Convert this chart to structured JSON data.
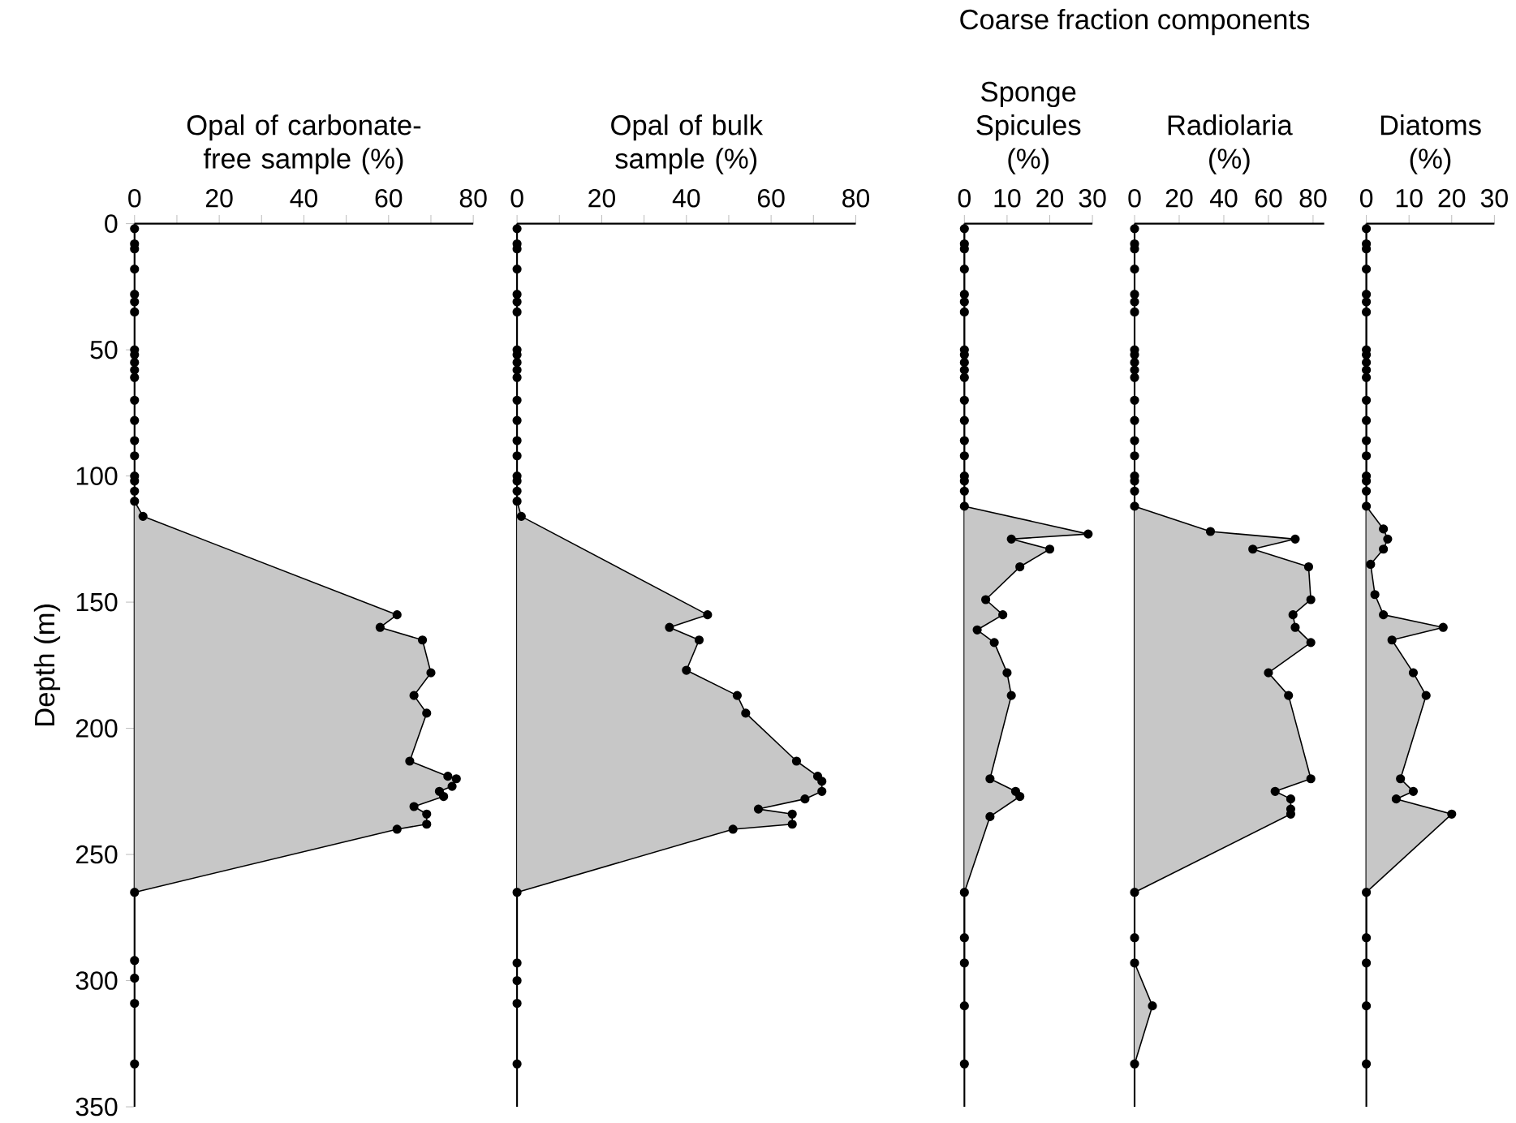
{
  "chart_data": [
    {
      "type": "area",
      "orientation": "horizontal",
      "xlabel": "Opal of carbonate-free sample (%)",
      "ylabel": "Depth (m)",
      "marker": "circle",
      "x": [
        2,
        8,
        10,
        18,
        28,
        31,
        35,
        50,
        52,
        55,
        58,
        61,
        70,
        78,
        86,
        92,
        100,
        102,
        106,
        110,
        116,
        155,
        160,
        165,
        178,
        187,
        194,
        213,
        219,
        220,
        223,
        225,
        227,
        231,
        234,
        238,
        240,
        265,
        292,
        299,
        309,
        333
      ],
      "series": [
        {
          "color": "#000000",
          "values": [
            0,
            0,
            0,
            0,
            0,
            0,
            0,
            0,
            0,
            0,
            0,
            0,
            0,
            0,
            0,
            0,
            0,
            0,
            0,
            0,
            2,
            62,
            58,
            68,
            70,
            66,
            69,
            65,
            74,
            76,
            75,
            72,
            73,
            66,
            69,
            69,
            62,
            0,
            0,
            0,
            0,
            0
          ]
        }
      ],
      "xlim": [
        0,
        80
      ],
      "xticks": [
        0,
        {
          "value": 10,
          "label": null
        },
        20,
        {
          "value": 30,
          "label": null
        },
        40,
        {
          "value": 50,
          "label": null
        },
        60,
        {
          "value": 70,
          "label": null
        },
        80
      ],
      "ylim": [
        350,
        0
      ],
      "yticks": [
        0,
        50,
        100,
        150,
        200,
        250,
        300,
        350
      ]
    },
    {
      "type": "area",
      "orientation": "horizontal",
      "xlabel": "Opal of bulk sample (%)",
      "marker": "circle",
      "tick_labels": "x",
      "x": [
        2,
        8,
        10,
        18,
        28,
        31,
        35,
        50,
        52,
        55,
        58,
        61,
        70,
        78,
        86,
        92,
        100,
        102,
        106,
        110,
        116,
        155,
        160,
        165,
        177,
        187,
        194,
        213,
        219,
        221,
        225,
        228,
        232,
        234,
        238,
        240,
        265,
        293,
        300,
        309,
        333
      ],
      "series": [
        {
          "color": "#000000",
          "values": [
            0,
            0,
            0,
            0,
            0,
            0,
            0,
            0,
            0,
            0,
            0,
            0,
            0,
            0,
            0,
            0,
            0,
            0,
            0,
            0,
            1,
            45,
            36,
            43,
            40,
            52,
            54,
            66,
            71,
            72,
            72,
            68,
            57,
            65,
            65,
            51,
            0,
            0,
            0,
            0,
            0
          ]
        }
      ],
      "xlim": [
        0,
        80
      ],
      "xticks": [
        0,
        {
          "value": 10,
          "label": null
        },
        20,
        {
          "value": 30,
          "label": null
        },
        40,
        {
          "value": 50,
          "label": null
        },
        60,
        {
          "value": 70,
          "label": null
        },
        80
      ],
      "ylim": [
        350,
        0
      ]
    },
    {
      "type": "area",
      "orientation": "horizontal",
      "xlabel": "Sponge Spicules (%)",
      "marker": "circle",
      "tick_labels": "x",
      "x": [
        2,
        8,
        10,
        18,
        28,
        31,
        35,
        50,
        52,
        55,
        58,
        61,
        70,
        78,
        86,
        92,
        100,
        102,
        106,
        112,
        123,
        125,
        129,
        136,
        149,
        155,
        161,
        166,
        178,
        187,
        220,
        225,
        227,
        235,
        265,
        283,
        293,
        310,
        333
      ],
      "series": [
        {
          "color": "#000000",
          "values": [
            0,
            0,
            0,
            0,
            0,
            0,
            0,
            0,
            0,
            0,
            0,
            0,
            0,
            0,
            0,
            0,
            0,
            0,
            0,
            0,
            29,
            11,
            20,
            13,
            5,
            9,
            3,
            7,
            10,
            11,
            6,
            12,
            13,
            6,
            0,
            0,
            0,
            0,
            0
          ]
        }
      ],
      "xlim": [
        0,
        30
      ],
      "xticks": [
        0,
        10,
        20,
        30
      ],
      "ylim": [
        350,
        0
      ]
    },
    {
      "type": "area",
      "orientation": "horizontal",
      "title": "Coarse fraction components",
      "xlabel": "Radiolaria (%)",
      "marker": "circle",
      "tick_labels": "x",
      "x": [
        2,
        8,
        10,
        18,
        28,
        31,
        35,
        50,
        52,
        55,
        58,
        61,
        70,
        78,
        86,
        92,
        100,
        102,
        106,
        112,
        122,
        125,
        129,
        136,
        149,
        155,
        160,
        166,
        178,
        187,
        220,
        225,
        228,
        232,
        234,
        265,
        283,
        293,
        310,
        333
      ],
      "series": [
        {
          "color": "#000000",
          "values": [
            0,
            0,
            0,
            0,
            0,
            0,
            0,
            0,
            0,
            0,
            0,
            0,
            0,
            0,
            0,
            0,
            0,
            0,
            0,
            0,
            34,
            72,
            53,
            78,
            79,
            71,
            72,
            79,
            60,
            69,
            79,
            63,
            70,
            70,
            70,
            0,
            0,
            0,
            8,
            0
          ]
        }
      ],
      "xlim": [
        0,
        85
      ],
      "xticks": [
        0,
        20,
        40,
        60,
        80
      ],
      "ylim": [
        350,
        0
      ]
    },
    {
      "type": "area",
      "orientation": "horizontal",
      "xlabel": "Diatoms (%)",
      "marker": "circle",
      "tick_labels": "x",
      "x": [
        2,
        8,
        10,
        18,
        28,
        31,
        35,
        50,
        52,
        55,
        58,
        61,
        70,
        78,
        86,
        92,
        100,
        102,
        106,
        112,
        121,
        125,
        129,
        135,
        147,
        155,
        160,
        165,
        178,
        187,
        220,
        225,
        228,
        234,
        265,
        283,
        293,
        310,
        333
      ],
      "series": [
        {
          "color": "#000000",
          "values": [
            0,
            0,
            0,
            0,
            0,
            0,
            0,
            0,
            0,
            0,
            0,
            0,
            0,
            0,
            0,
            0,
            0,
            0,
            0,
            0,
            4,
            5,
            4,
            1,
            2,
            4,
            18,
            6,
            11,
            14,
            8,
            11,
            7,
            20,
            0,
            0,
            0,
            0,
            0
          ]
        }
      ],
      "xlim": [
        0,
        30
      ],
      "xticks": [
        0,
        10,
        20,
        30
      ],
      "ylim": [
        350,
        0
      ]
    }
  ]
}
